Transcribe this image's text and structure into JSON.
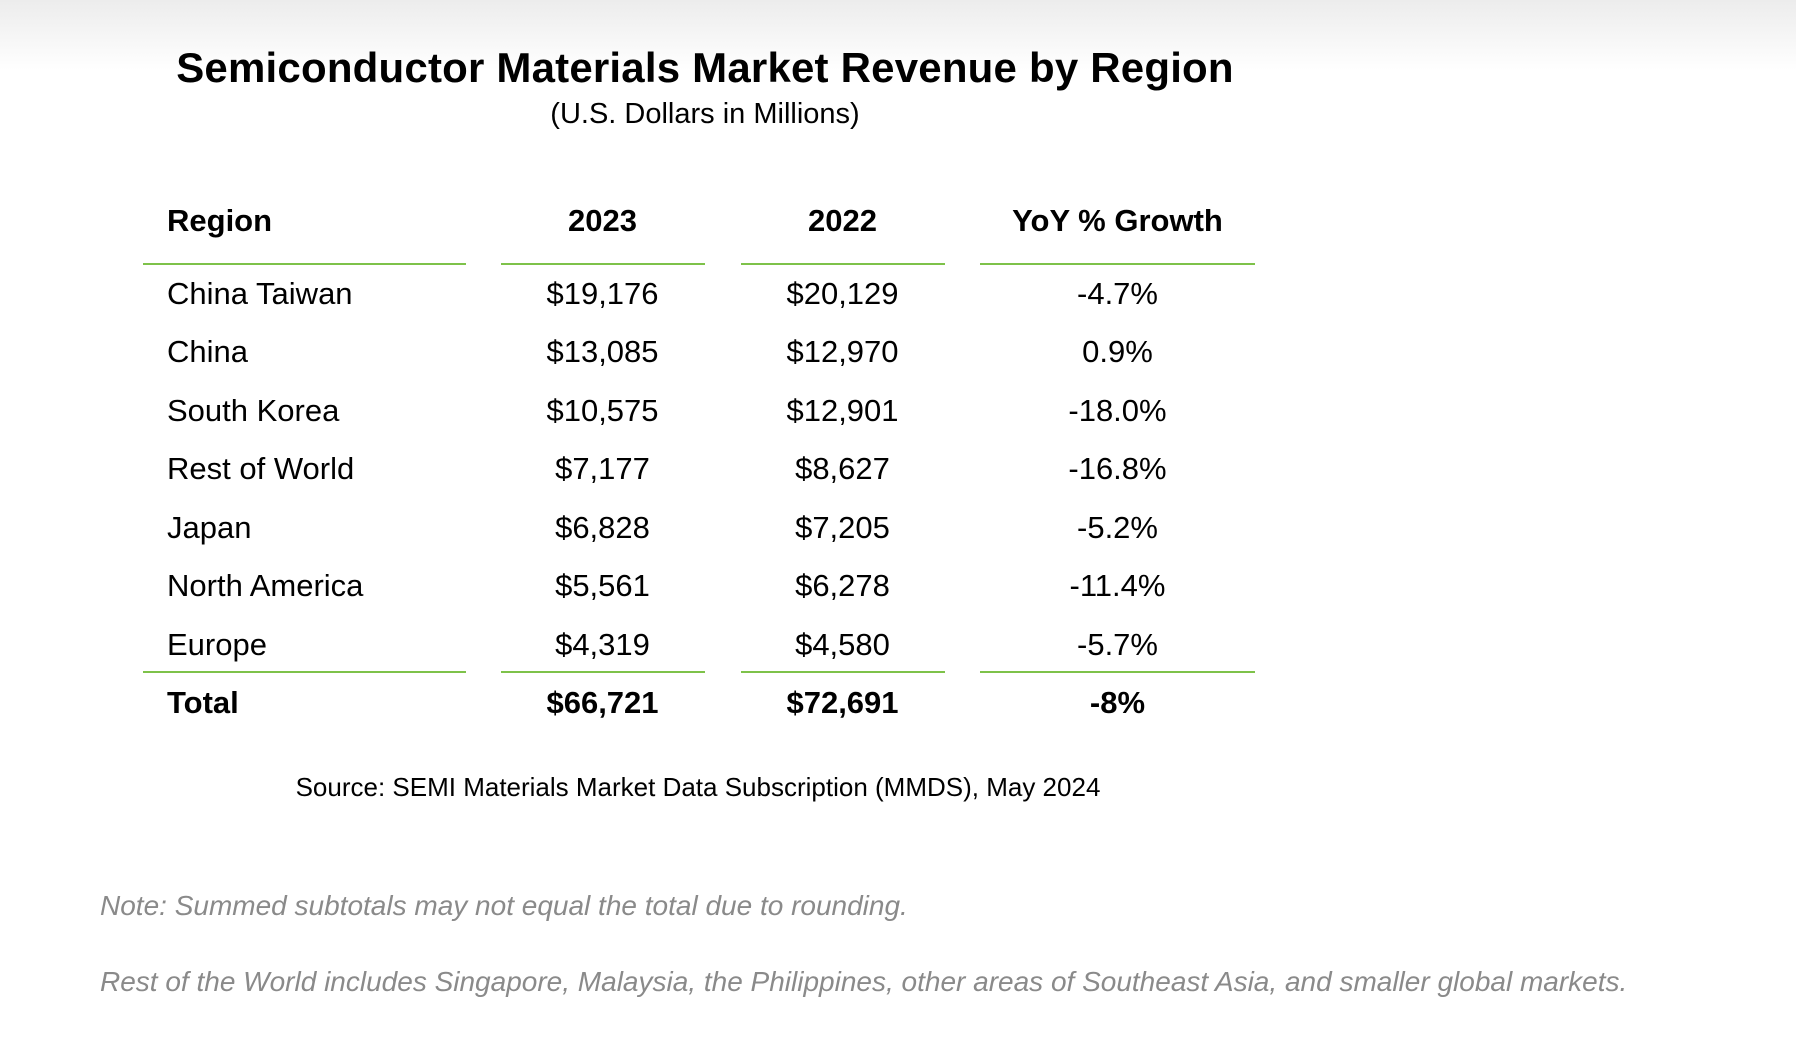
{
  "report": {
    "title": "Semiconductor Materials Market Revenue by Region",
    "subtitle": "(U.S. Dollars in Millions)",
    "headers": [
      "Region",
      "2023",
      "2022",
      "YoY % Growth"
    ],
    "rows": [
      {
        "region": "China Taiwan",
        "y2023": "$19,176",
        "y2022": "$20,129",
        "yoy": "-4.7%"
      },
      {
        "region": "China",
        "y2023": "$13,085",
        "y2022": "$12,970",
        "yoy": "0.9%"
      },
      {
        "region": "South Korea",
        "y2023": "$10,575",
        "y2022": "$12,901",
        "yoy": "-18.0%"
      },
      {
        "region": "Rest of World",
        "y2023": "$7,177",
        "y2022": "$8,627",
        "yoy": "-16.8%"
      },
      {
        "region": "Japan",
        "y2023": "$6,828",
        "y2022": "$7,205",
        "yoy": "-5.2%"
      },
      {
        "region": "North America",
        "y2023": "$5,561",
        "y2022": "$6,278",
        "yoy": "-11.4%"
      },
      {
        "region": "Europe",
        "y2023": "$4,319",
        "y2022": "$4,580",
        "yoy": "-5.7%"
      }
    ],
    "total": {
      "region": "Total",
      "y2023": "$66,721",
      "y2022": "$72,691",
      "yoy": "-8%"
    },
    "source": "Source: SEMI Materials Market Data Subscription (MMDS), May 2024",
    "rule_color": "#7ec24a"
  },
  "notes": {
    "rounding": "Note: Summed subtotals may not equal the total due to rounding.",
    "rest_of_world": "Rest of the World includes Singapore, Malaysia, the Philippines, other areas of Southeast Asia, and smaller global markets."
  }
}
